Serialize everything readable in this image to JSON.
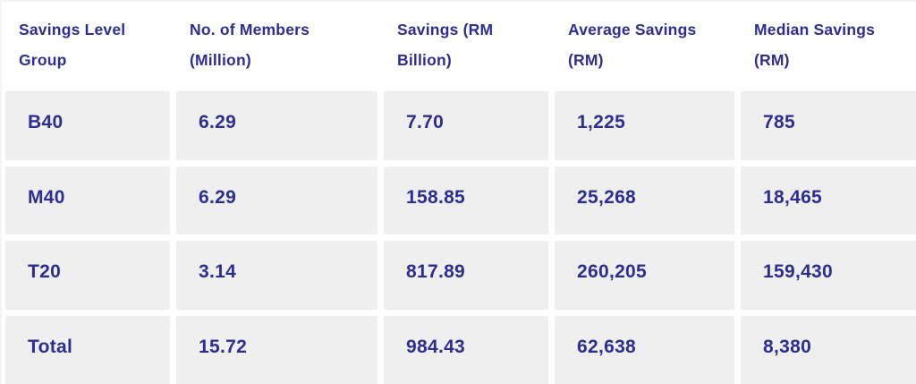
{
  "chart_data": {
    "type": "table",
    "title": "",
    "columns": [
      "Savings Level Group",
      "No. of Members (Million)",
      "Savings (RM Billion)",
      "Average Savings (RM)",
      "Median Savings (RM)"
    ],
    "rows": [
      [
        "B40",
        "6.29",
        "7.70",
        "1,225",
        "785"
      ],
      [
        "M40",
        "6.29",
        "158.85",
        "25,268",
        "18,465"
      ],
      [
        "T20",
        "3.14",
        "817.89",
        "260,205",
        "159,430"
      ],
      [
        "Total",
        "15.72",
        "984.43",
        "62,638",
        "8,380"
      ]
    ]
  },
  "colors": {
    "text": "#2E2E90",
    "cell_bg": "#EFEFEF",
    "header_bg": "#FFFFFF",
    "gap": "#FFFFFF"
  }
}
